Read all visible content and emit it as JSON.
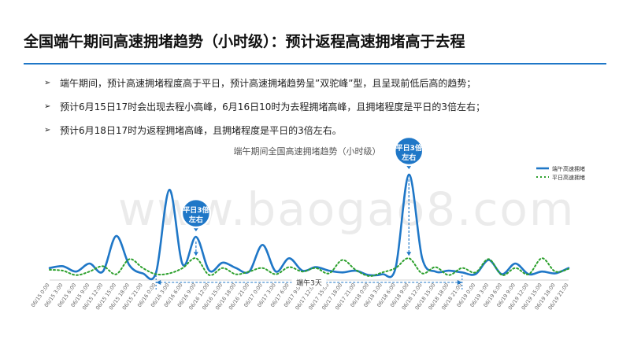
{
  "slide": {
    "title": "全国端午期间高速拥堵趋势（小时级）：预计返程高速拥堵高于去程",
    "bullets": [
      "端午期间，预计高速拥堵程度高于平日，预计高速拥堵趋势呈”双驼峰”型，且呈现前低后高的趋势；",
      "预计6月15日17时会出现去程小高峰，6月16日10时为去程拥堵高峰，且拥堵程度是平日的3倍左右；",
      "预计6月18日17时为返程拥堵高峰，且拥堵程度是平日的3倍左右。"
    ],
    "watermark": "www.baogao8.com"
  },
  "colors": {
    "accent": "#1f77c7",
    "holiday_line": "#1f77c7",
    "normal_line": "#2ca02c"
  },
  "chart_data": {
    "type": "line",
    "title": "端午期间全国高速拥堵趋势（小时级）",
    "legend_position": "top-right",
    "grid": false,
    "x": [
      "06/15 0:00",
      "06/15 3:00",
      "06/15 6:00",
      "06/15 9:00",
      "06/15 12:00",
      "06/15 15:00",
      "06/15 18:00",
      "06/15 21:00",
      "06/16 0:00",
      "06/16 3:00",
      "06/16 6:00",
      "06/16 9:00",
      "06/16 12:00",
      "06/16 15:00",
      "06/16 18:00",
      "06/16 21:00",
      "06/17 0:00",
      "06/17 3:00",
      "06/17 6:00",
      "06/17 9:00",
      "06/17 12:00",
      "06/17 15:00",
      "06/17 18:00",
      "06/17 21:00",
      "06/18 0:00",
      "06/18 3:00",
      "06/18 6:00",
      "06/18 9:00",
      "06/18 12:00",
      "06/18 15:00",
      "06/18 18:00",
      "06/18 21:00",
      "06/19 0:00",
      "06/19 3:00",
      "06/19 6:00",
      "06/19 9:00",
      "06/19 12:00",
      "06/19 15:00",
      "06/19 18:00",
      "06/19 21:00"
    ],
    "series": [
      {
        "name": "端午高速拥堵",
        "values": [
          1.0,
          1.2,
          0.6,
          1.5,
          0.6,
          4.6,
          1.3,
          0.4,
          0.5,
          9.8,
          1.4,
          4.5,
          0.7,
          1.6,
          1.0,
          0.6,
          3.6,
          0.6,
          2.1,
          0.7,
          1.1,
          0.7,
          0.5,
          0.7,
          0.2,
          0.3,
          1.0,
          11.5,
          2.1,
          0.6,
          0.7,
          0.5,
          0.3,
          1.9,
          0.3,
          1.5,
          0.3,
          0.6,
          0.4,
          1.0
        ]
      },
      {
        "name": "平日高速拥堵",
        "values": [
          0.8,
          0.7,
          0.2,
          0.6,
          1.2,
          0.3,
          2.0,
          1.0,
          0.3,
          0.4,
          1.0,
          2.1,
          0.2,
          1.0,
          0.3,
          0.6,
          1.0,
          0.3,
          1.1,
          0.6,
          1.0,
          0.4,
          1.9,
          0.8,
          0.1,
          0.5,
          1.0,
          2.1,
          0.4,
          1.1,
          0.2,
          1.0,
          0.5,
          2.0,
          0.2,
          1.0,
          0.3,
          2.1,
          0.6,
          0.9
        ]
      }
    ],
    "ylim": [
      0,
      13
    ],
    "annotations": [
      {
        "text": "平日3倍左右",
        "series": "端午高速拥堵",
        "x": "06/16 9:00"
      },
      {
        "text": "平日3倍左右",
        "series": "端午高速拥堵",
        "x": "06/18 9:00"
      },
      {
        "text": "端午3天",
        "from": "06/16 0:00",
        "to": "06/18 21:00"
      }
    ],
    "badge_lines": [
      [
        "平日3倍",
        "左右"
      ],
      [
        "平日3倍",
        "左右"
      ]
    ]
  }
}
